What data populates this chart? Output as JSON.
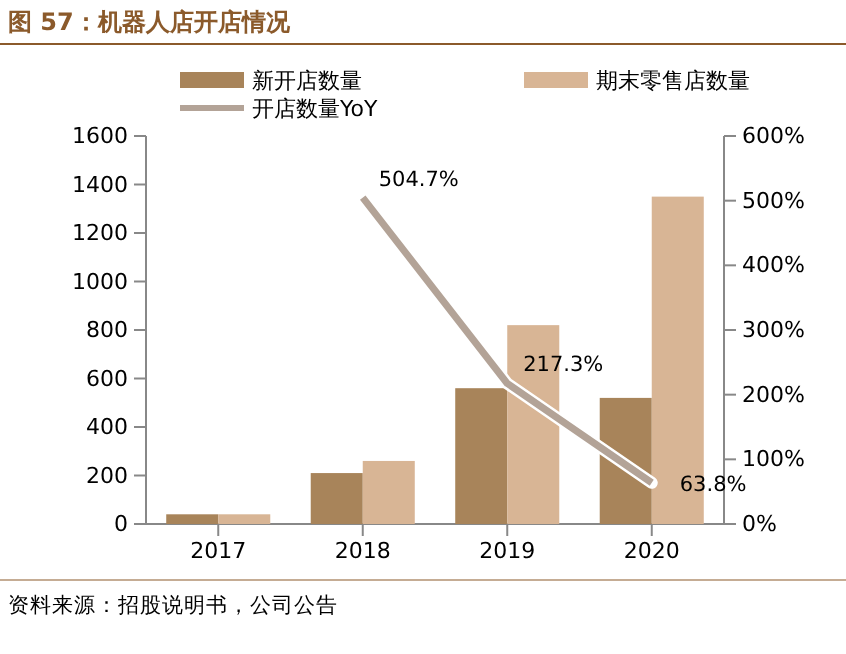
{
  "chart_data": {
    "type": "bar",
    "title": "图 57：机器人店开店情况",
    "categories": [
      "2017",
      "2018",
      "2019",
      "2020"
    ],
    "series": [
      {
        "name": "新开店数量",
        "color": "#a8845a",
        "values": [
          40,
          210,
          560,
          520
        ]
      },
      {
        "name": "期末零售店数量",
        "color": "#d8b595",
        "values": [
          40,
          260,
          820,
          1350
        ]
      },
      {
        "name": "开店数量YoY",
        "type": "line",
        "axis": "y2",
        "color": "#b3a397",
        "values": [
          null,
          504.7,
          217.3,
          63.8
        ],
        "value_labels": [
          null,
          "504.7%",
          "217.3%",
          "63.8%"
        ]
      }
    ],
    "ylim": [
      0,
      1600
    ],
    "yticks": [
      0,
      200,
      400,
      600,
      800,
      1000,
      1200,
      1400,
      1600
    ],
    "y2lim": [
      0,
      600
    ],
    "y2ticks": [
      {
        "value": 0,
        "label": "0%"
      },
      {
        "value": 100,
        "label": "100%"
      },
      {
        "value": 200,
        "label": "200%"
      },
      {
        "value": 300,
        "label": "300%"
      },
      {
        "value": 400,
        "label": "400%"
      },
      {
        "value": 500,
        "label": "500%"
      },
      {
        "value": 600,
        "label": "600%"
      }
    ],
    "legend": "top",
    "grid": false,
    "annotations": [
      "资料来源：招股说明书，公司公告"
    ]
  }
}
